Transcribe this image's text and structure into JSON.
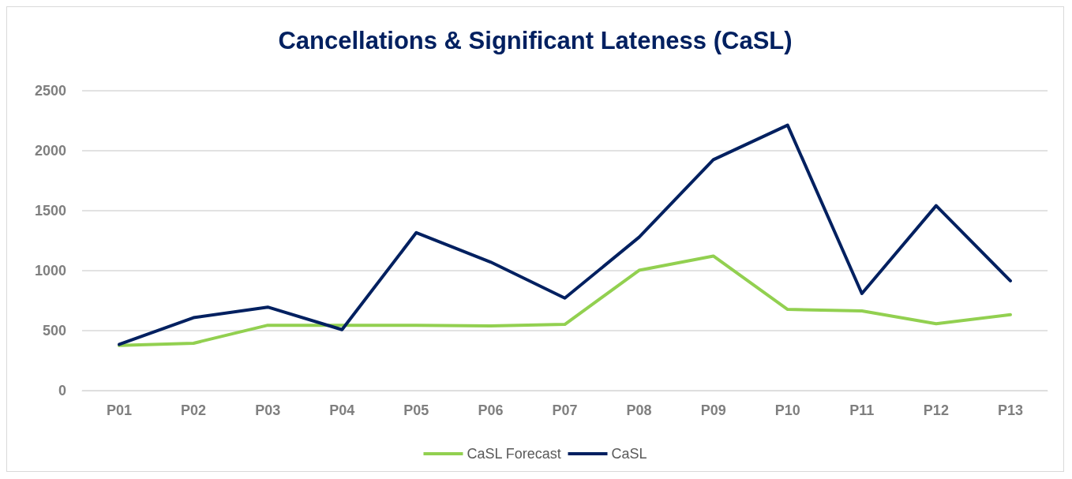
{
  "chart_data": {
    "type": "line",
    "title": "Cancellations & Significant Lateness (CaSL)",
    "categories": [
      "P01",
      "P02",
      "P03",
      "P04",
      "P05",
      "P06",
      "P07",
      "P08",
      "P09",
      "P10",
      "P11",
      "P12",
      "P13"
    ],
    "series": [
      {
        "name": "CaSL Forecast",
        "color": "#92d050",
        "values": [
          376,
          395,
          545,
          545,
          545,
          539,
          552,
          1003,
          1122,
          677,
          665,
          558,
          633
        ]
      },
      {
        "name": "CaSL",
        "color": "#002060",
        "values": [
          385,
          608,
          696,
          508,
          1317,
          1072,
          771,
          1279,
          1925,
          2213,
          809,
          1542,
          915
        ]
      }
    ],
    "ylim": [
      0,
      2500
    ],
    "yticks": [
      0,
      500,
      1000,
      1500,
      2000,
      2500
    ],
    "grid": "y",
    "legend": "bottom",
    "marker": "none",
    "line_style": "solid"
  }
}
